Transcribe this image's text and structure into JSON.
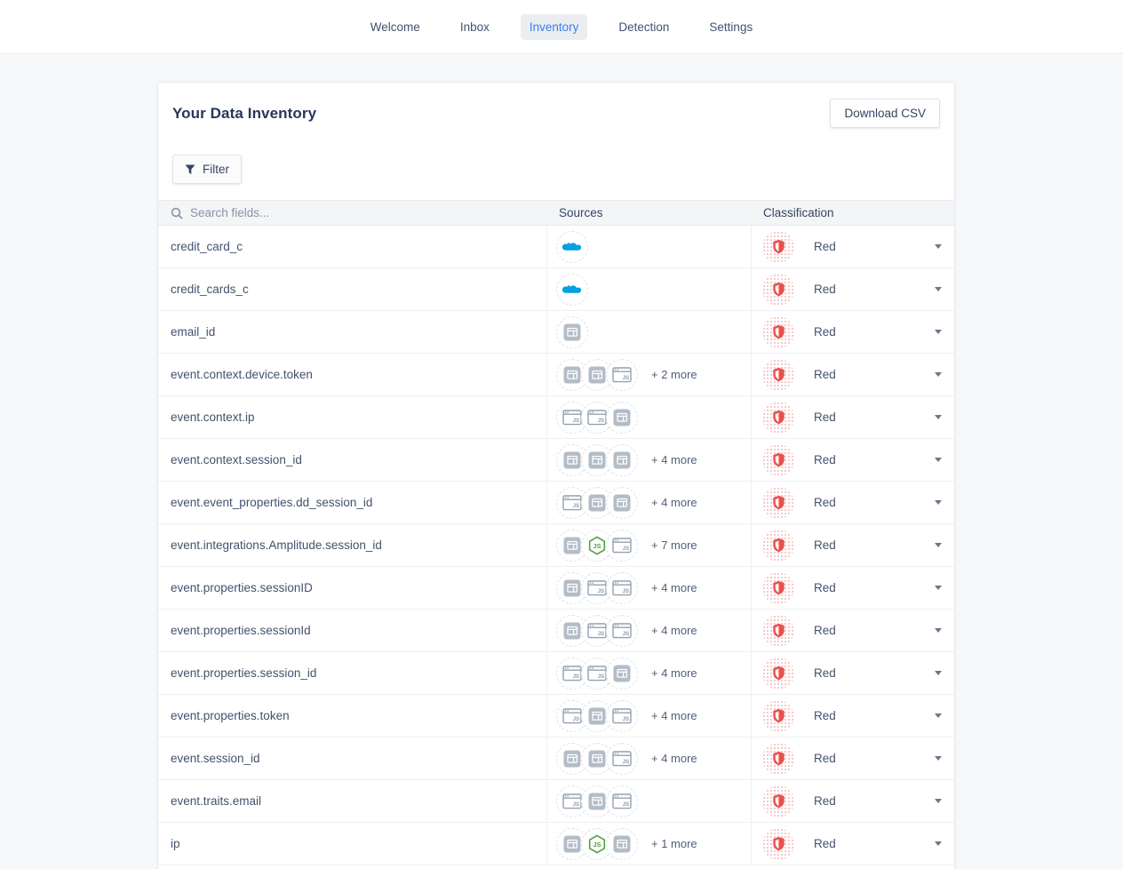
{
  "nav": {
    "items": [
      {
        "label": "Welcome",
        "active": false
      },
      {
        "label": "Inbox",
        "active": false
      },
      {
        "label": "Inventory",
        "active": true
      },
      {
        "label": "Detection",
        "active": false
      },
      {
        "label": "Settings",
        "active": false
      }
    ]
  },
  "card": {
    "title": "Your Data Inventory",
    "download_button": "Download CSV",
    "filter_button": "Filter"
  },
  "table": {
    "search_placeholder": "Search fields...",
    "columns": {
      "sources": "Sources",
      "classification": "Classification"
    },
    "rows": [
      {
        "field": "credit_card_c",
        "sources": [
          "salesforce"
        ],
        "more": "",
        "classification": "Red"
      },
      {
        "field": "credit_cards_c",
        "sources": [
          "salesforce"
        ],
        "more": "",
        "classification": "Red"
      },
      {
        "field": "email_id",
        "sources": [
          "app-window"
        ],
        "more": "",
        "classification": "Red"
      },
      {
        "field": "event.context.device.token",
        "sources": [
          "app-window",
          "app-window",
          "javascript-browser"
        ],
        "more": "+ 2 more",
        "classification": "Red"
      },
      {
        "field": "event.context.ip",
        "sources": [
          "javascript-browser",
          "javascript-browser",
          "app-window"
        ],
        "more": "",
        "classification": "Red"
      },
      {
        "field": "event.context.session_id",
        "sources": [
          "app-window",
          "app-window",
          "app-window"
        ],
        "more": "+ 4 more",
        "classification": "Red"
      },
      {
        "field": "event.event_properties.dd_session_id",
        "sources": [
          "javascript-browser",
          "app-window",
          "app-window"
        ],
        "more": "+ 4 more",
        "classification": "Red"
      },
      {
        "field": "event.integrations.Amplitude.session_id",
        "sources": [
          "app-window",
          "nodejs",
          "javascript-browser"
        ],
        "more": "+ 7 more",
        "classification": "Red"
      },
      {
        "field": "event.properties.sessionID",
        "sources": [
          "app-window",
          "javascript-browser",
          "javascript-browser"
        ],
        "more": "+ 4 more",
        "classification": "Red"
      },
      {
        "field": "event.properties.sessionId",
        "sources": [
          "app-window",
          "javascript-browser",
          "javascript-browser"
        ],
        "more": "+ 4 more",
        "classification": "Red"
      },
      {
        "field": "event.properties.session_id",
        "sources": [
          "javascript-browser",
          "javascript-browser",
          "app-window"
        ],
        "more": "+ 4 more",
        "classification": "Red"
      },
      {
        "field": "event.properties.token",
        "sources": [
          "javascript-browser",
          "app-window",
          "javascript-browser"
        ],
        "more": "+ 4 more",
        "classification": "Red"
      },
      {
        "field": "event.session_id",
        "sources": [
          "app-window",
          "app-window",
          "javascript-browser"
        ],
        "more": "+ 4 more",
        "classification": "Red"
      },
      {
        "field": "event.traits.email",
        "sources": [
          "javascript-browser",
          "app-window",
          "javascript-browser"
        ],
        "more": "",
        "classification": "Red"
      },
      {
        "field": "ip",
        "sources": [
          "app-window",
          "nodejs",
          "app-window"
        ],
        "more": "+ 1 more",
        "classification": "Red"
      }
    ]
  },
  "colors": {
    "accent_blue": "#3b7ef0",
    "classification_red": "#e8504c",
    "salesforce_blue": "#00a1e0",
    "nodejs_green": "#539e43",
    "icon_gray": "#b3bdc7"
  }
}
